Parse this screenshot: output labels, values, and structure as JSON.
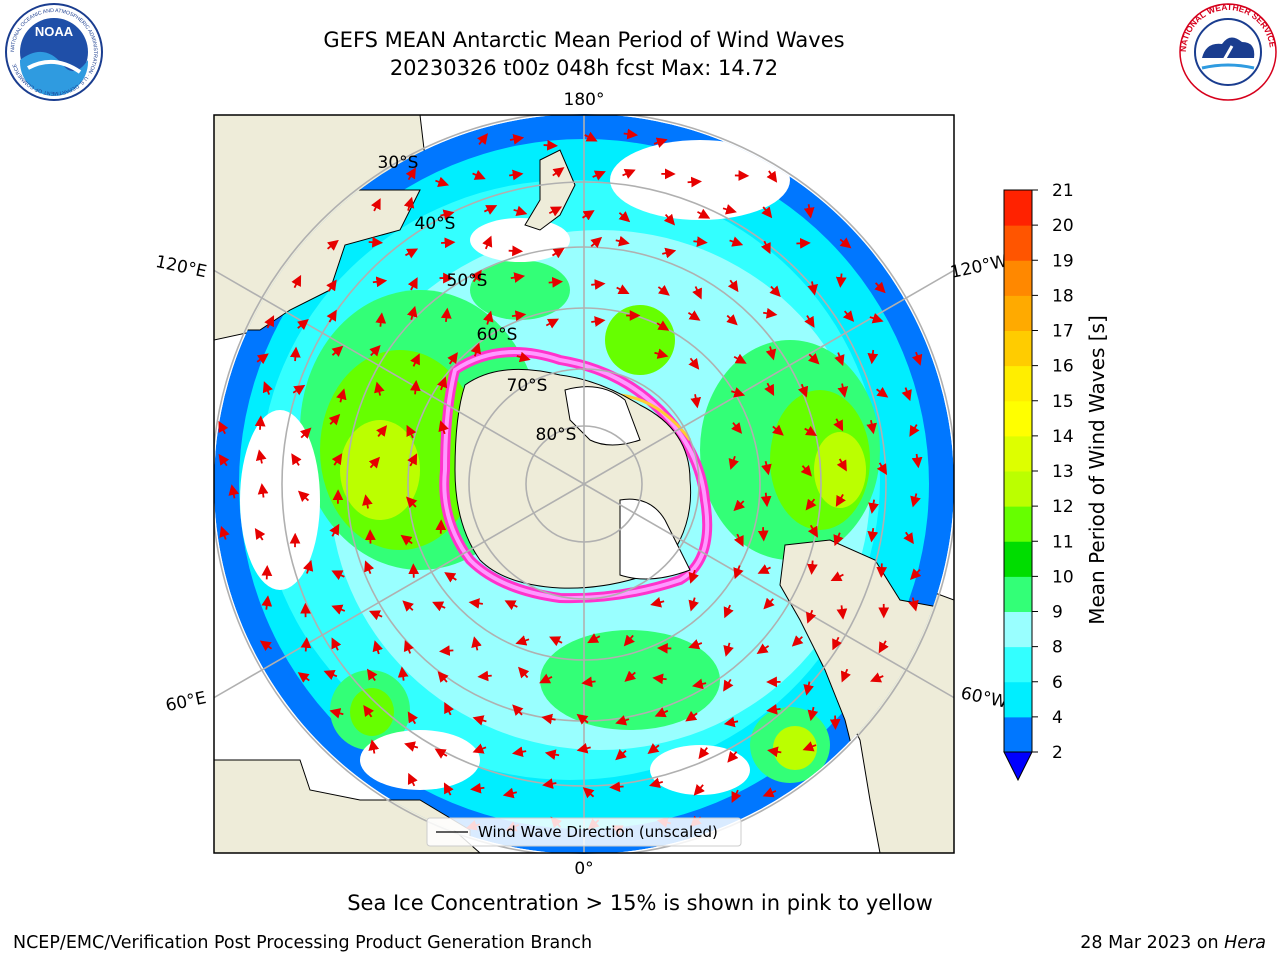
{
  "header": {
    "title_line1": "GEFS MEAN Antarctic Mean Period of Wind Waves",
    "title_line2": "20230326 t00z 048h fcst   Max: 14.72"
  },
  "logos": {
    "left": {
      "name": "noaa-logo",
      "text": "NOAA",
      "ring_text": "NATIONAL OCEANIC AND ATMOSPHERIC ADMINISTRATION · U.S. DEPARTMENT OF COMMERCE"
    },
    "right": {
      "name": "nws-logo",
      "ring_text": "NATIONAL WEATHER SERVICE"
    }
  },
  "map": {
    "projection": "south-polar-stereographic",
    "longitude_labels": {
      "top": "180°",
      "bottom": "0°",
      "upper_left": "120°E",
      "upper_right": "120°W",
      "lower_left": "60°E",
      "lower_right": "60°W"
    },
    "latitude_labels": [
      "30°S",
      "40°S",
      "50°S",
      "60°S",
      "70°S",
      "80°S"
    ],
    "legend": {
      "label": "Wind Wave Direction (unscaled)"
    },
    "arrow_color": "#e60000",
    "land_color": "#eeecd9",
    "ice_colors": [
      "#ff33cc",
      "#ff99ff",
      "#ffcc33"
    ]
  },
  "colorbar": {
    "label": "Mean Period of Wind Waves [s]",
    "ticks": [
      "2",
      "4",
      "6",
      "8",
      "9",
      "10",
      "11",
      "12",
      "13",
      "14",
      "15",
      "16",
      "17",
      "18",
      "19",
      "20",
      "21"
    ],
    "colors": [
      "#0077ff",
      "#00eeff",
      "#33ffff",
      "#99ffff",
      "#33ff77",
      "#00dd00",
      "#66ff00",
      "#bbff00",
      "#ddff00",
      "#ffff00",
      "#ffee00",
      "#ffcc00",
      "#ffaa00",
      "#ff8800",
      "#ff5500",
      "#ff2200",
      "#ff0000"
    ],
    "under_color": "#0000ff"
  },
  "note": "Sea Ice Concentration > 15% is shown in pink to yellow",
  "footer": {
    "left": "NCEP/EMC/Verification Post Processing Product Generation Branch",
    "right_date": "28 Mar 2023 on ",
    "right_host": "Hera"
  }
}
